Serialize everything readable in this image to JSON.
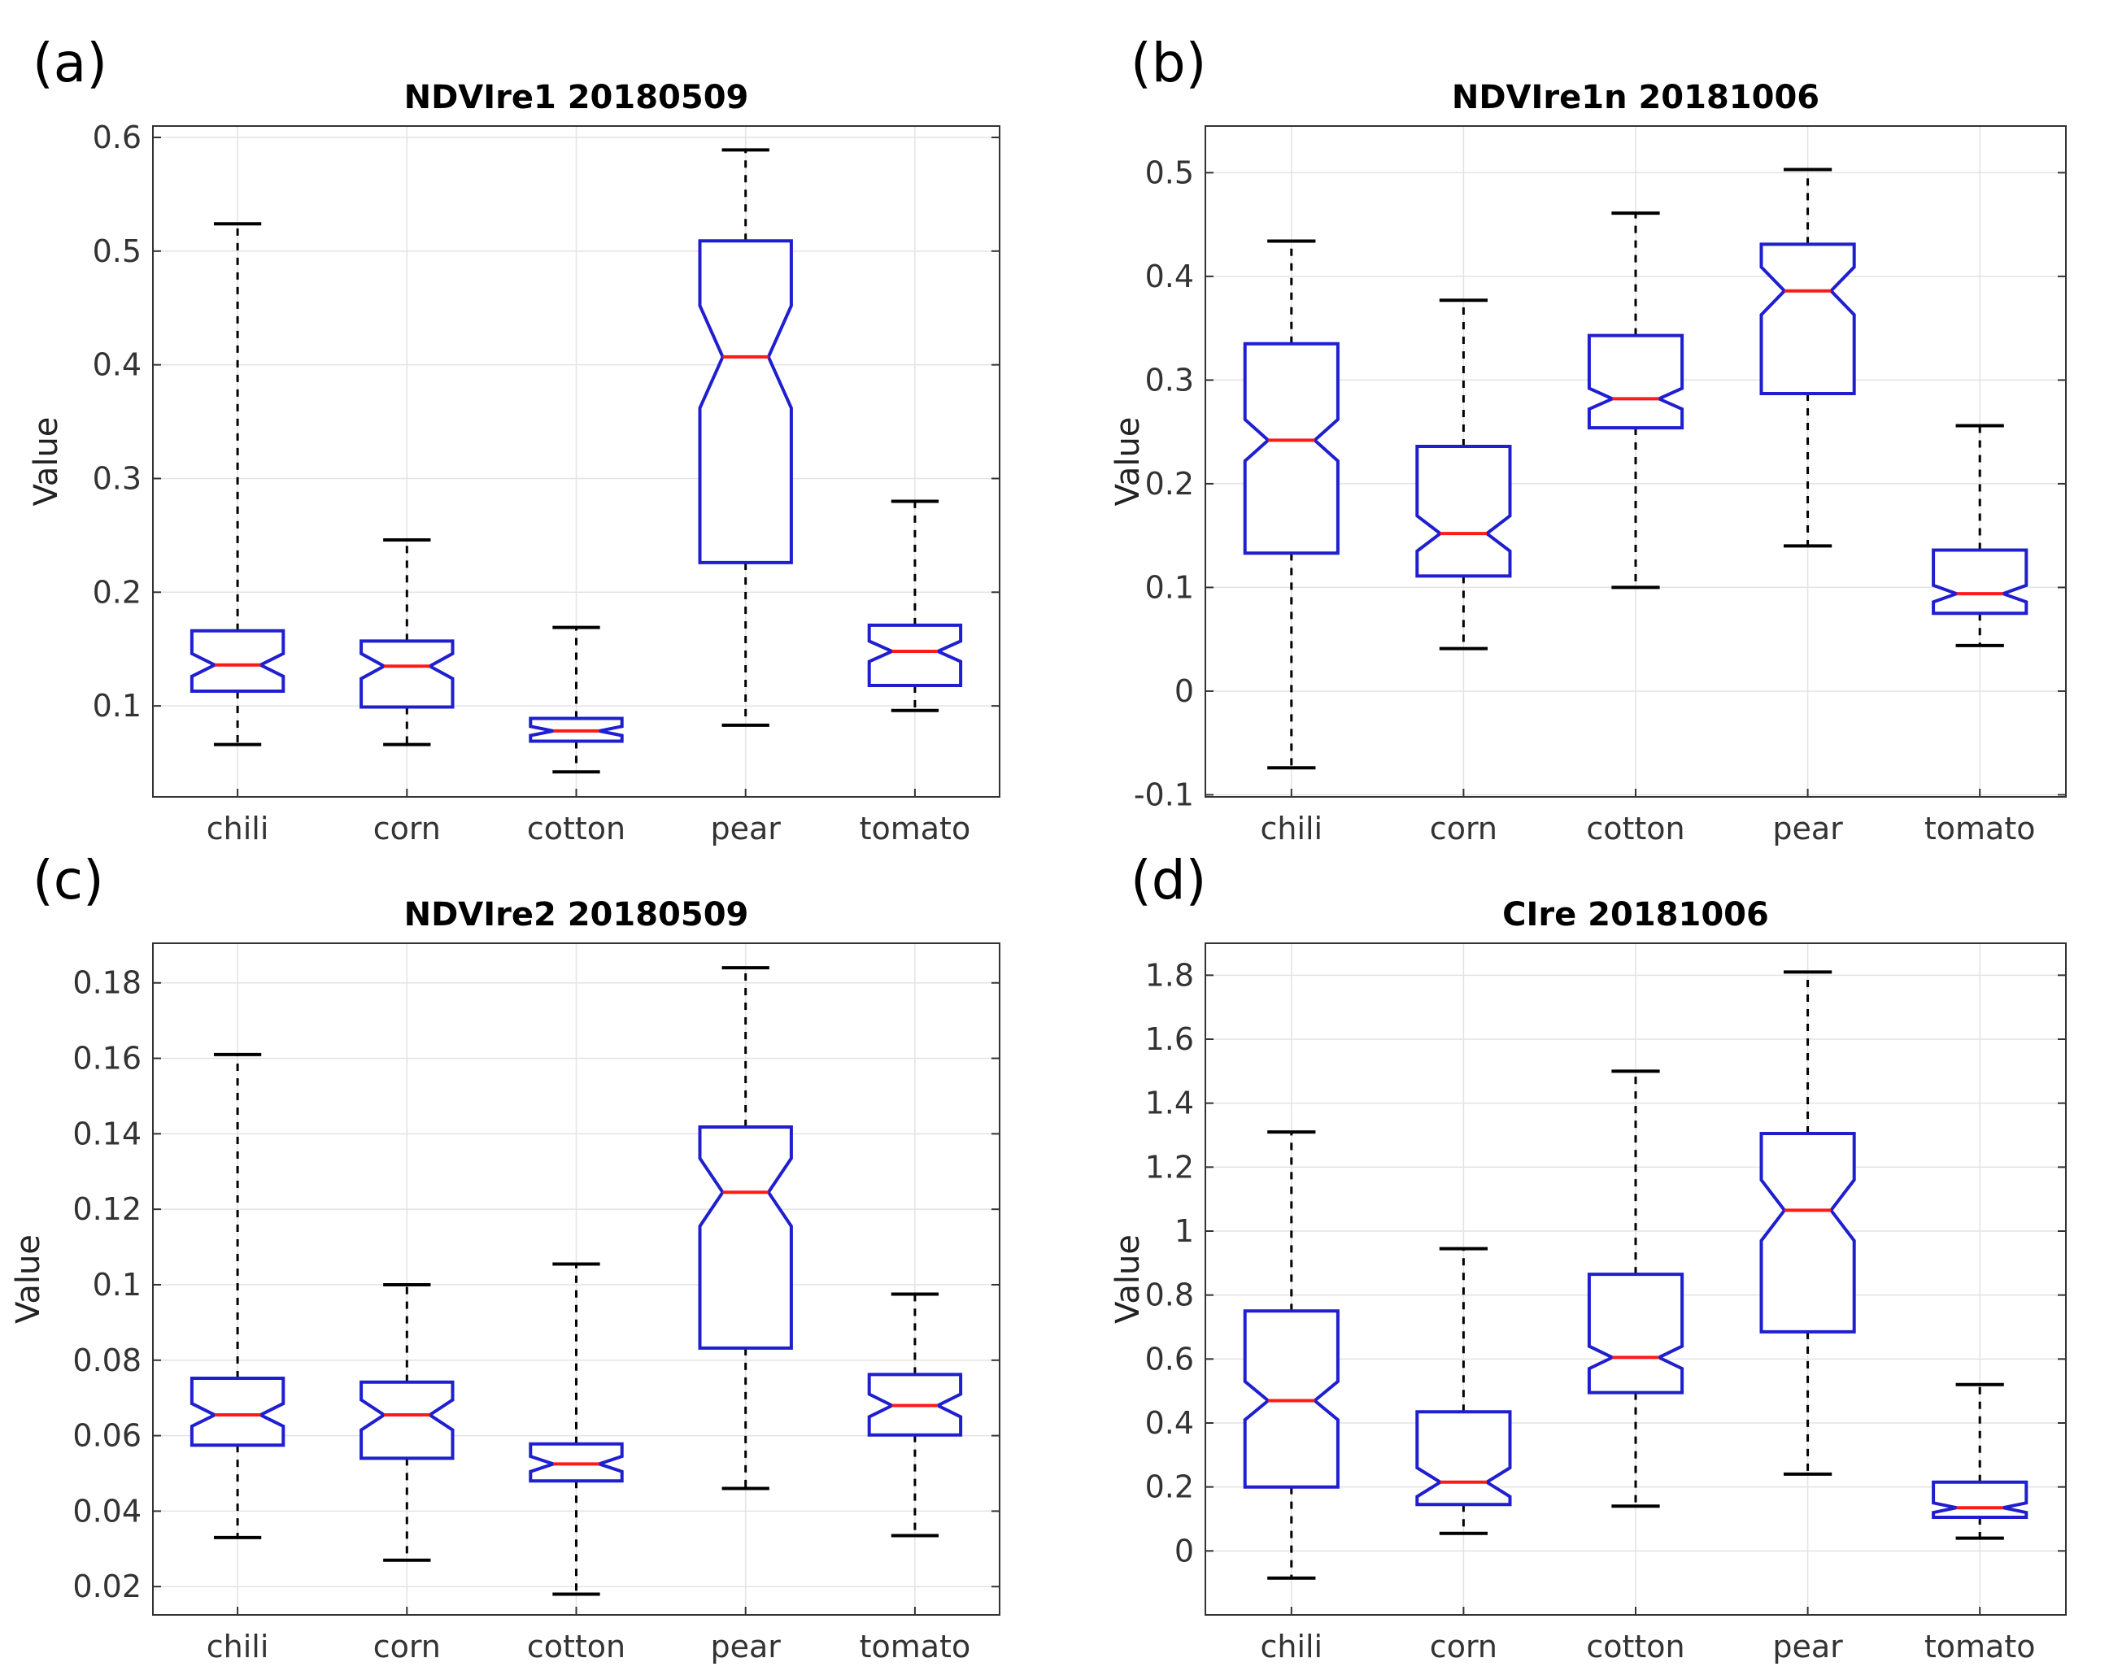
{
  "colors": {
    "box": "#1f1fd0",
    "median": "#ff1a1a",
    "whisker": "#000000",
    "grid": "#e3e3e3",
    "axis": "#333333"
  },
  "chart_data": [
    {
      "panel": "(a)",
      "type": "boxplot",
      "notched": true,
      "title": "NDVIre1 20180509",
      "ylabel": "Value",
      "xlabel": "",
      "categories": [
        "chili",
        "corn",
        "cotton",
        "pear",
        "tomato"
      ],
      "ylim": [
        0.02,
        0.61
      ],
      "yticks": [
        0.1,
        0.2,
        0.3,
        0.4,
        0.5,
        0.6
      ],
      "ytick_labels": [
        "0.1",
        "0.2",
        "0.3",
        "0.4",
        "0.5",
        "0.6"
      ],
      "boxes": [
        {
          "whisker_low": 0.066,
          "q1": 0.113,
          "median": 0.136,
          "q3": 0.166,
          "whisker_high": 0.524,
          "notch_low": 0.126,
          "notch_high": 0.146
        },
        {
          "whisker_low": 0.066,
          "q1": 0.099,
          "median": 0.135,
          "q3": 0.157,
          "whisker_high": 0.246,
          "notch_low": 0.124,
          "notch_high": 0.146
        },
        {
          "whisker_low": 0.042,
          "q1": 0.069,
          "median": 0.078,
          "q3": 0.089,
          "whisker_high": 0.169,
          "notch_low": 0.074,
          "notch_high": 0.082
        },
        {
          "whisker_low": 0.083,
          "q1": 0.226,
          "median": 0.407,
          "q3": 0.509,
          "whisker_high": 0.589,
          "notch_low": 0.362,
          "notch_high": 0.452
        },
        {
          "whisker_low": 0.096,
          "q1": 0.118,
          "median": 0.148,
          "q3": 0.171,
          "whisker_high": 0.28,
          "notch_low": 0.139,
          "notch_high": 0.157
        }
      ]
    },
    {
      "panel": "(b)",
      "type": "boxplot",
      "notched": true,
      "title": "NDVIre1n 20181006",
      "ylabel": "Value",
      "xlabel": "",
      "categories": [
        "chili",
        "corn",
        "cotton",
        "pear",
        "tomato"
      ],
      "ylim": [
        -0.102,
        0.545
      ],
      "yticks": [
        -0.1,
        0,
        0.1,
        0.2,
        0.3,
        0.4,
        0.5
      ],
      "ytick_labels": [
        "-0.1",
        "0",
        "0.1",
        "0.2",
        "0.3",
        "0.4",
        "0.5"
      ],
      "boxes": [
        {
          "whisker_low": -0.074,
          "q1": 0.133,
          "median": 0.242,
          "q3": 0.335,
          "whisker_high": 0.434,
          "notch_low": 0.222,
          "notch_high": 0.262
        },
        {
          "whisker_low": 0.041,
          "q1": 0.111,
          "median": 0.152,
          "q3": 0.236,
          "whisker_high": 0.377,
          "notch_low": 0.135,
          "notch_high": 0.169
        },
        {
          "whisker_low": 0.1,
          "q1": 0.254,
          "median": 0.282,
          "q3": 0.343,
          "whisker_high": 0.461,
          "notch_low": 0.272,
          "notch_high": 0.292
        },
        {
          "whisker_low": 0.14,
          "q1": 0.287,
          "median": 0.386,
          "q3": 0.431,
          "whisker_high": 0.503,
          "notch_low": 0.363,
          "notch_high": 0.409
        },
        {
          "whisker_low": 0.044,
          "q1": 0.075,
          "median": 0.094,
          "q3": 0.136,
          "whisker_high": 0.256,
          "notch_low": 0.086,
          "notch_high": 0.102
        }
      ]
    },
    {
      "panel": "(c)",
      "type": "boxplot",
      "notched": true,
      "title": "NDVIre2 20180509",
      "ylabel": "Value",
      "xlabel": "",
      "categories": [
        "chili",
        "corn",
        "cotton",
        "pear",
        "tomato"
      ],
      "ylim": [
        0.0125,
        0.1905
      ],
      "yticks": [
        0.02,
        0.04,
        0.06,
        0.08,
        0.1,
        0.12,
        0.14,
        0.16,
        0.18
      ],
      "ytick_labels": [
        "0.02",
        "0.04",
        "0.06",
        "0.08",
        "0.1",
        "0.12",
        "0.14",
        "0.16",
        "0.18"
      ],
      "boxes": [
        {
          "whisker_low": 0.033,
          "q1": 0.0575,
          "median": 0.0655,
          "q3": 0.0752,
          "whisker_high": 0.161,
          "notch_low": 0.0625,
          "notch_high": 0.0685
        },
        {
          "whisker_low": 0.027,
          "q1": 0.054,
          "median": 0.0655,
          "q3": 0.0742,
          "whisker_high": 0.1,
          "notch_low": 0.0615,
          "notch_high": 0.0695
        },
        {
          "whisker_low": 0.018,
          "q1": 0.048,
          "median": 0.0525,
          "q3": 0.0578,
          "whisker_high": 0.1055,
          "notch_low": 0.0505,
          "notch_high": 0.0545
        },
        {
          "whisker_low": 0.046,
          "q1": 0.0832,
          "median": 0.1245,
          "q3": 0.1418,
          "whisker_high": 0.184,
          "notch_low": 0.1155,
          "notch_high": 0.1335
        },
        {
          "whisker_low": 0.0335,
          "q1": 0.0602,
          "median": 0.068,
          "q3": 0.0762,
          "whisker_high": 0.0975,
          "notch_low": 0.065,
          "notch_high": 0.071
        }
      ]
    },
    {
      "panel": "(d)",
      "type": "boxplot",
      "notched": true,
      "title": "CIre 20181006",
      "ylabel": "Value",
      "xlabel": "",
      "categories": [
        "chili",
        "corn",
        "cotton",
        "pear",
        "tomato"
      ],
      "ylim": [
        -0.2,
        1.9
      ],
      "yticks": [
        0,
        0.2,
        0.4,
        0.6,
        0.8,
        1,
        1.2,
        1.4,
        1.6,
        1.8
      ],
      "ytick_labels": [
        "0",
        "0.2",
        "0.4",
        "0.6",
        "0.8",
        "1",
        "1.2",
        "1.4",
        "1.6",
        "1.8"
      ],
      "boxes": [
        {
          "whisker_low": -0.085,
          "q1": 0.2,
          "median": 0.47,
          "q3": 0.75,
          "whisker_high": 1.31,
          "notch_low": 0.41,
          "notch_high": 0.53
        },
        {
          "whisker_low": 0.055,
          "q1": 0.145,
          "median": 0.215,
          "q3": 0.435,
          "whisker_high": 0.945,
          "notch_low": 0.17,
          "notch_high": 0.26
        },
        {
          "whisker_low": 0.14,
          "q1": 0.495,
          "median": 0.605,
          "q3": 0.865,
          "whisker_high": 1.5,
          "notch_low": 0.57,
          "notch_high": 0.64
        },
        {
          "whisker_low": 0.24,
          "q1": 0.685,
          "median": 1.065,
          "q3": 1.305,
          "whisker_high": 1.81,
          "notch_low": 0.97,
          "notch_high": 1.16
        },
        {
          "whisker_low": 0.04,
          "q1": 0.105,
          "median": 0.135,
          "q3": 0.215,
          "whisker_high": 0.52,
          "notch_low": 0.12,
          "notch_high": 0.15
        }
      ]
    }
  ]
}
